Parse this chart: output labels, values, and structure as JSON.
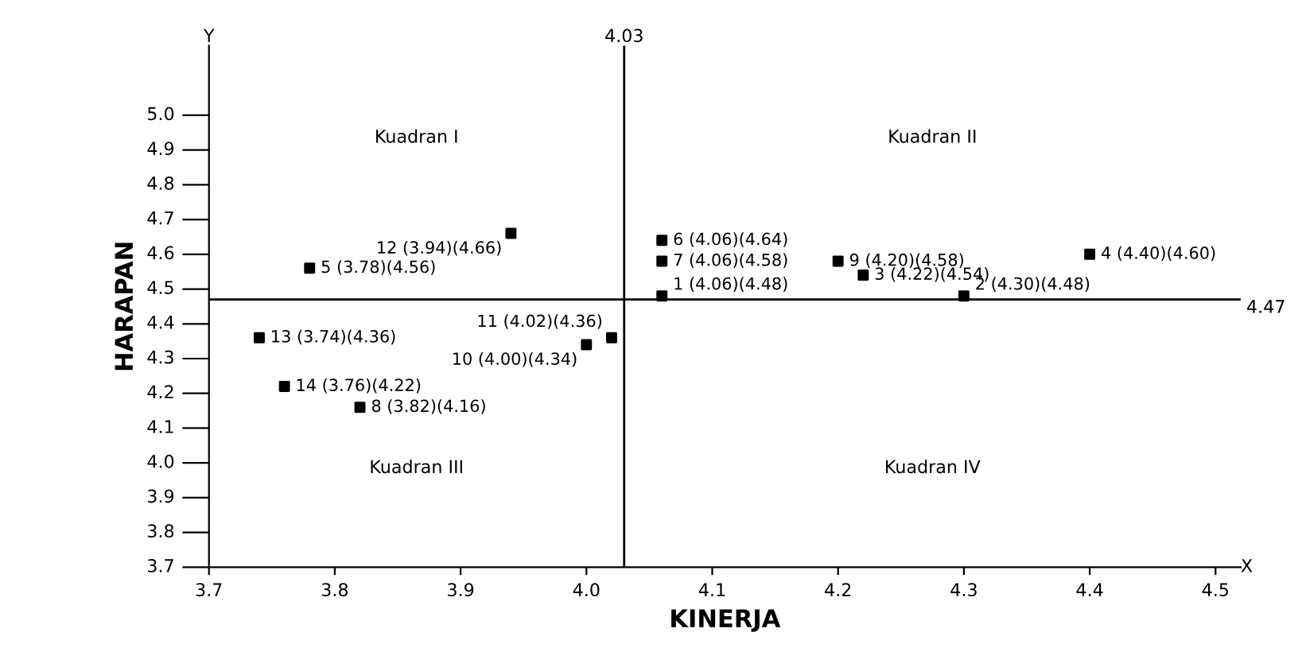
{
  "chart_data": {
    "type": "scatter",
    "xlabel": "KINERJA",
    "ylabel": "HARAPAN",
    "x": [
      4.06,
      4.3,
      4.22,
      4.4,
      3.78,
      4.06,
      4.06,
      3.82,
      4.2,
      4.0,
      4.02,
      3.94,
      3.74,
      3.76
    ],
    "series": [
      {
        "color": "#000000",
        "values": [
          4.48,
          4.48,
          4.54,
          4.6,
          4.56,
          4.64,
          4.58,
          4.16,
          4.58,
          4.34,
          4.36,
          4.66,
          4.36,
          4.22
        ],
        "value_labels": [
          "1 (4.06)(4.48)",
          "2 (4.30)(4.48)",
          "3 (4.22)(4.54)",
          "4 (4.40)(4.60)",
          "5 (3.78)(4.56)",
          "6 (4.06)(4.64)",
          "7 (4.06)(4.58)",
          "8 (3.82)(4.16)",
          "9 (4.20)(4.58)",
          "10 (4.00)(4.34)",
          "11 (4.02)(4.36)",
          "12 (3.94)(4.66)",
          "13 (3.74)(4.36)",
          "14 (3.76)(4.22)"
        ]
      }
    ],
    "marker": "square",
    "xlim": [
      3.7,
      4.52
    ],
    "ylim": [
      3.7,
      5.2
    ],
    "xticks": [
      3.7,
      3.8,
      3.9,
      {
        "value": 4,
        "label": "4.0"
      },
      4.1,
      4.2,
      4.3,
      4.4,
      4.5
    ],
    "yticks": [
      3.7,
      3.8,
      3.9,
      {
        "value": 4,
        "label": "4.0"
      },
      4.1,
      4.2,
      4.3,
      4.4,
      4.5,
      4.6,
      4.7,
      4.8,
      4.9,
      {
        "value": 5,
        "label": "5.0"
      }
    ],
    "ref_lines": [
      {
        "axis": "x",
        "value": 4.03,
        "label": "4.03"
      },
      {
        "axis": "y",
        "value": 4.47,
        "label": "4.47"
      }
    ],
    "annotations": [
      "Kuadran I",
      "Kuadran II",
      "Kuadran III",
      "Kuadran IV",
      "Y",
      "X"
    ],
    "grid": false,
    "legend": false
  }
}
